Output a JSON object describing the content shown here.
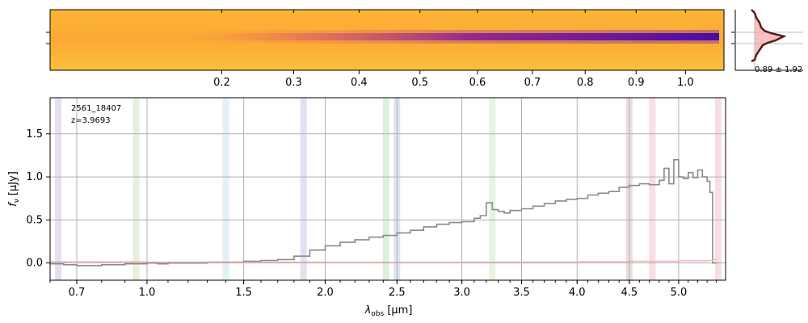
{
  "spectrum_image": {
    "top_axis_ticks": [
      "0.2",
      "0.3",
      "0.4",
      "0.5",
      "0.6",
      "0.7",
      "0.8",
      "0.9",
      "1.0"
    ],
    "top_axis_values": [
      0.2,
      0.3,
      0.4,
      0.5,
      0.6,
      0.7,
      0.8,
      0.9,
      1.0
    ],
    "colormap": [
      "#fcd23a",
      "#fca636",
      "#e16462",
      "#b12a90",
      "#6a00a8",
      "#0d0887"
    ]
  },
  "profile_inset": {
    "label": "0.89 ± 1.92",
    "line_color": "#5a1a1a",
    "fill_color": "#f4a6a6"
  },
  "chart_data": {
    "type": "line",
    "title": "",
    "annotation_id": "2561_18407",
    "annotation_z": "z=3.9693",
    "xlabel": "λ",
    "xlabel_sub": "obs",
    "xlabel_unit": "[μm]",
    "ylabel": "f",
    "ylabel_sub": "ν",
    "ylabel_unit": "[μJy]",
    "xlim": [
      0.6,
      5.5
    ],
    "ylim": [
      -0.2,
      1.92
    ],
    "x_ticks": [
      0.7,
      1.0,
      1.5,
      2.0,
      2.5,
      3.0,
      3.5,
      4.0,
      4.5,
      5.0
    ],
    "x_tick_labels": [
      "0.7",
      "1.0",
      "1.5",
      "2.0",
      "2.5",
      "3.0",
      "3.5",
      "4.0",
      "4.5",
      "5.0"
    ],
    "y_ticks": [
      0.0,
      0.5,
      1.0,
      1.5
    ],
    "y_tick_labels": [
      "0.0",
      "0.5",
      "1.0",
      "1.5"
    ],
    "grid": true,
    "emission_lines": [
      {
        "x": 0.63,
        "color": "#b9a0d6"
      },
      {
        "x": 0.95,
        "color": "#b8d49c"
      },
      {
        "x": 1.4,
        "color": "#a8d8ea"
      },
      {
        "x": 1.86,
        "color": "#b9a0d6"
      },
      {
        "x": 2.42,
        "color": "#9bd39b"
      },
      {
        "x": 2.5,
        "color": "#9fb2dc"
      },
      {
        "x": 3.25,
        "color": "#b8e0a8"
      },
      {
        "x": 4.5,
        "color": "#c8a0a0"
      },
      {
        "x": 4.73,
        "color": "#e6a6b0"
      },
      {
        "x": 5.42,
        "color": "#e8a0a8"
      }
    ],
    "series": [
      {
        "name": "flux",
        "color": "#8a8a8a",
        "x": [
          0.6,
          0.65,
          0.7,
          0.75,
          0.8,
          0.85,
          0.9,
          0.95,
          1.0,
          1.05,
          1.1,
          1.2,
          1.3,
          1.4,
          1.5,
          1.6,
          1.7,
          1.8,
          1.9,
          2.0,
          2.1,
          2.2,
          2.3,
          2.4,
          2.5,
          2.6,
          2.7,
          2.8,
          2.9,
          3.0,
          3.1,
          3.15,
          3.2,
          3.25,
          3.3,
          3.35,
          3.4,
          3.5,
          3.6,
          3.7,
          3.8,
          3.9,
          4.0,
          4.1,
          4.2,
          4.3,
          4.4,
          4.5,
          4.6,
          4.7,
          4.8,
          4.85,
          4.9,
          4.95,
          5.0,
          5.05,
          5.1,
          5.15,
          5.2,
          5.25,
          5.3,
          5.33,
          5.35,
          5.36,
          5.4
        ],
        "values": [
          -0.01,
          -0.02,
          -0.03,
          -0.03,
          -0.02,
          -0.02,
          -0.01,
          -0.01,
          0.0,
          -0.01,
          0.0,
          0.0,
          0.01,
          0.01,
          0.02,
          0.03,
          0.04,
          0.08,
          0.15,
          0.2,
          0.24,
          0.27,
          0.3,
          0.32,
          0.35,
          0.38,
          0.42,
          0.45,
          0.47,
          0.48,
          0.52,
          0.55,
          0.7,
          0.62,
          0.6,
          0.58,
          0.61,
          0.63,
          0.66,
          0.69,
          0.72,
          0.74,
          0.75,
          0.79,
          0.81,
          0.83,
          0.88,
          0.9,
          0.92,
          0.91,
          0.96,
          1.1,
          0.92,
          1.2,
          1.0,
          0.98,
          1.05,
          0.99,
          1.08,
          1.0,
          0.95,
          0.82,
          0.82,
          0.0,
          0.0
        ]
      },
      {
        "name": "error",
        "color": "#f4a6a6",
        "x": [
          0.6,
          1.0,
          2.0,
          3.0,
          4.0,
          4.5,
          5.0,
          5.3,
          5.36,
          5.4
        ],
        "values": [
          0.015,
          0.01,
          0.008,
          0.01,
          0.015,
          0.02,
          0.025,
          0.03,
          0.04,
          0.04
        ]
      }
    ]
  }
}
